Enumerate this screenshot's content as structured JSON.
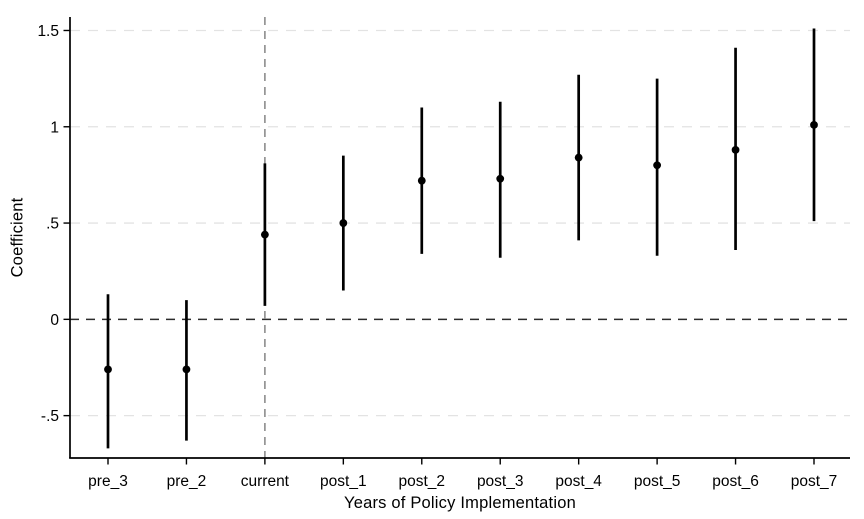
{
  "figure": {
    "title": "",
    "ylabel": "Coefficient",
    "xlabel": "Years of Policy Implementation"
  },
  "chart_data": {
    "type": "scatter",
    "subtype": "event-study-coefficient-plot-with-95ci",
    "title": "",
    "xlabel": "Years of Policy Implementation",
    "ylabel": "Coefficient",
    "categories": [
      "pre_3",
      "pre_2",
      "current",
      "post_1",
      "post_2",
      "post_3",
      "post_4",
      "post_5",
      "post_6",
      "post_7"
    ],
    "series": [
      {
        "name": "coefficient",
        "values": [
          -0.26,
          -0.26,
          0.44,
          0.5,
          0.72,
          0.73,
          0.84,
          0.8,
          0.88,
          1.01
        ]
      },
      {
        "name": "ci_lower",
        "values": [
          -0.67,
          -0.63,
          0.07,
          0.15,
          0.34,
          0.32,
          0.41,
          0.33,
          0.36,
          0.51
        ]
      },
      {
        "name": "ci_upper",
        "values": [
          0.13,
          0.1,
          0.81,
          0.85,
          1.1,
          1.13,
          1.27,
          1.25,
          1.41,
          1.51
        ]
      }
    ],
    "yticks": [
      -0.5,
      0,
      0.5,
      1,
      1.5
    ],
    "ytick_labels": [
      "-.5",
      "0",
      ".5",
      "1",
      "1.5"
    ],
    "ylim": [
      -0.72,
      1.57
    ],
    "grid": "horizontal-dashed-at-yticks",
    "legend": "none",
    "reference_lines": {
      "horizontal_y": 0,
      "vertical_at_category": "current"
    },
    "colors": {
      "marker": "#000000",
      "ci_line": "#000000",
      "axis": "#000000",
      "text": "#000000",
      "grid": "#e3e3e3",
      "zero_line": "#2b2b2b",
      "vline": "#8c8c8c",
      "background": "#ffffff"
    }
  }
}
